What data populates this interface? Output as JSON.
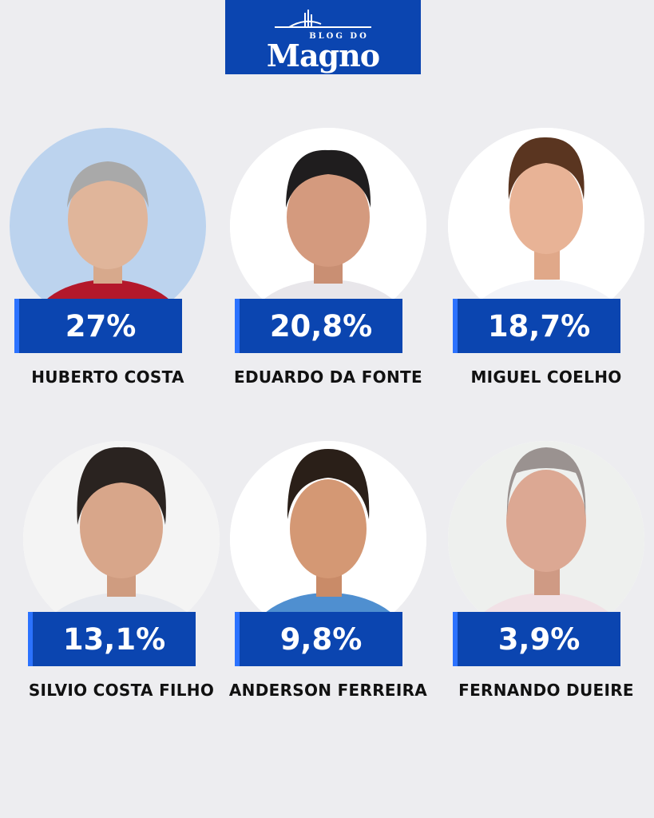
{
  "logo": {
    "top": "BLOG DO",
    "main": "Magno"
  },
  "candidates": [
    {
      "name": "HUBERTO COSTA",
      "percent": "27%",
      "bg": "#bcd3ee",
      "shirt": "#b4182b",
      "hair": "#a9a9a9"
    },
    {
      "name": "EDUARDO DA FONTE",
      "percent": "20,8%",
      "bg": "#ffffff",
      "shirt": "#e8e6ea",
      "hair": "#1f1d1e"
    },
    {
      "name": "MIGUEL COELHO",
      "percent": "18,7%",
      "bg": "#ffffff",
      "shirt": "#f2f3f7",
      "hair": "#5a3520"
    },
    {
      "name": "SILVIO COSTA FILHO",
      "percent": "13,1%",
      "bg": "#f4f4f4",
      "shirt": "#e7e9ee",
      "hair": "#2a2320"
    },
    {
      "name": "ANDERSON FERREIRA",
      "percent": "9,8%",
      "bg": "#ffffff",
      "shirt": "#4f8fd0",
      "hair": "#2a1f18"
    },
    {
      "name": "FERNANDO DUEIRE",
      "percent": "3,9%",
      "bg": "#eef0ee",
      "shirt": "#f1e1e6",
      "hair": "#9a9290"
    }
  ]
}
